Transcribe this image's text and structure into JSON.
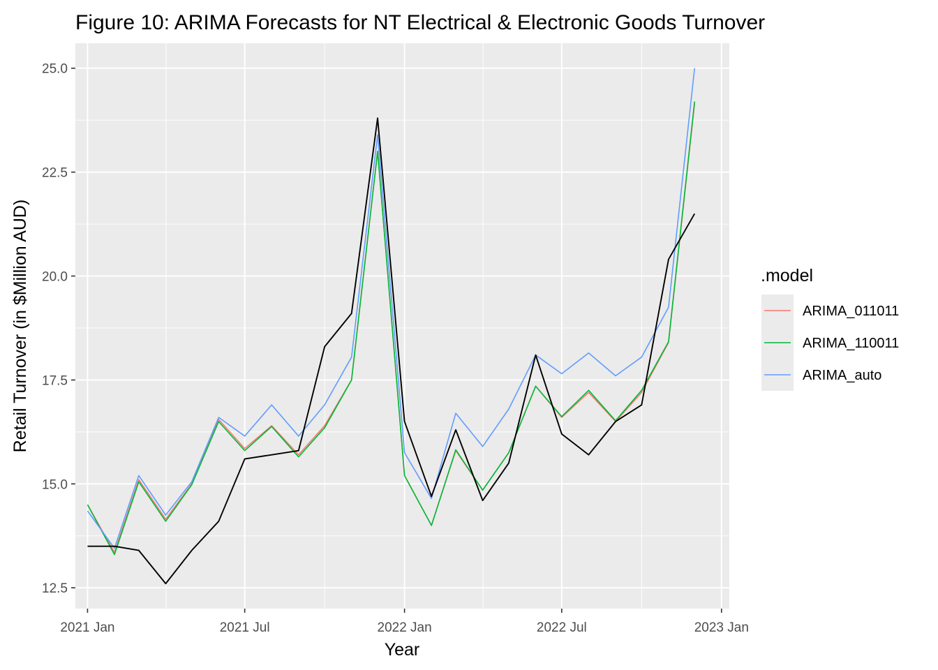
{
  "chart_data": {
    "type": "line",
    "title": "Figure 10: ARIMA Forecasts for NT Electrical & Electronic Goods Turnover",
    "xlabel": "Year",
    "ylabel": "Retail Turnover (in $Million AUD)",
    "x_type": "date",
    "xlim": [
      "2020-12-18",
      "2023-01-10"
    ],
    "ylim": [
      12.0,
      25.6
    ],
    "x_ticks": [
      {
        "label": "2021 Jan",
        "date": "2021-01-01"
      },
      {
        "label": "2021 Jul",
        "date": "2021-07-01"
      },
      {
        "label": "2022 Jan",
        "date": "2022-01-01"
      },
      {
        "label": "2022 Jul",
        "date": "2022-07-01"
      },
      {
        "label": "2023 Jan",
        "date": "2023-01-01"
      }
    ],
    "y_ticks": [
      {
        "label": "12.5",
        "value": 12.5
      },
      {
        "label": "15.0",
        "value": 15.0
      },
      {
        "label": "17.5",
        "value": 17.5
      },
      {
        "label": "20.0",
        "value": 20.0
      },
      {
        "label": "22.5",
        "value": 22.5
      },
      {
        "label": "25.0",
        "value": 25.0
      }
    ],
    "grid": true,
    "legend": {
      "title": ".model",
      "position": "right"
    },
    "x": [
      "2021-01-01",
      "2021-02-01",
      "2021-03-01",
      "2021-04-01",
      "2021-05-01",
      "2021-06-01",
      "2021-07-01",
      "2021-08-01",
      "2021-09-01",
      "2021-10-01",
      "2021-11-01",
      "2021-12-01",
      "2022-01-01",
      "2022-02-01",
      "2022-03-01",
      "2022-04-01",
      "2022-05-01",
      "2022-06-01",
      "2022-07-01",
      "2022-08-01",
      "2022-09-01",
      "2022-10-01",
      "2022-11-01",
      "2022-12-01"
    ],
    "series": [
      {
        "name": "ARIMA_011011",
        "color": "#F8766D",
        "in_legend": true,
        "values": [
          14.5,
          13.35,
          15.1,
          14.15,
          15.0,
          16.55,
          15.85,
          16.4,
          15.7,
          16.4,
          17.5,
          23.0,
          15.2,
          14.0,
          15.8,
          14.85,
          15.75,
          17.35,
          16.6,
          17.2,
          16.5,
          17.2,
          18.4,
          24.15
        ]
      },
      {
        "name": "ARIMA_110011",
        "color": "#00BA38",
        "in_legend": true,
        "values": [
          14.5,
          13.3,
          15.05,
          14.1,
          14.98,
          16.5,
          15.8,
          16.38,
          15.65,
          16.35,
          17.5,
          23.0,
          15.2,
          14.0,
          15.82,
          14.85,
          15.75,
          17.35,
          16.62,
          17.25,
          16.52,
          17.25,
          18.42,
          24.2
        ]
      },
      {
        "name": "ARIMA_auto",
        "color": "#619CFF",
        "in_legend": true,
        "values": [
          14.35,
          13.45,
          15.2,
          14.25,
          15.05,
          16.6,
          16.15,
          16.9,
          16.15,
          16.9,
          18.05,
          23.4,
          15.75,
          14.65,
          16.7,
          15.9,
          16.8,
          18.1,
          17.65,
          18.15,
          17.6,
          18.05,
          19.25,
          25.0
        ]
      },
      {
        "name": "",
        "color": "#000000",
        "in_legend": false,
        "values": [
          13.5,
          13.5,
          13.4,
          12.6,
          13.4,
          14.1,
          15.6,
          15.7,
          15.8,
          18.3,
          19.1,
          23.8,
          16.5,
          14.7,
          16.3,
          14.6,
          15.5,
          18.1,
          16.2,
          15.7,
          16.5,
          16.9,
          20.4,
          21.5
        ]
      }
    ]
  }
}
